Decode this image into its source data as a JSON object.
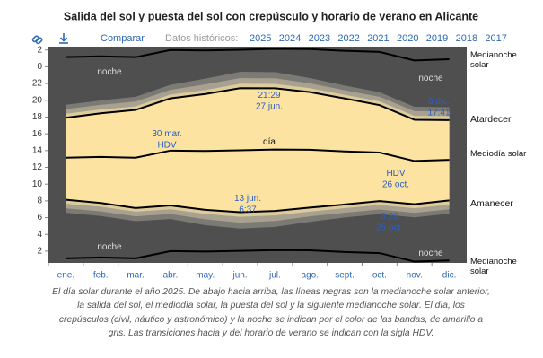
{
  "chart_data": {
    "type": "sunchart",
    "title": "Salida del sol y puesta del sol con crepúsculo y horario de verano en Alicante",
    "toolbar": {
      "compare": "Comparar",
      "history_label": "Datos históricos:",
      "years": [
        "2025",
        "2024",
        "2023",
        "2022",
        "2021",
        "2020",
        "2019",
        "2018",
        "2017"
      ]
    },
    "categories": [
      "ene.",
      "feb.",
      "mar.",
      "abr.",
      "may.",
      "jun.",
      "jul.",
      "ago.",
      "sept.",
      "oct.",
      "nov.",
      "dic."
    ],
    "ylim": [
      0.6,
      26.4
    ],
    "yticks": [
      2,
      4,
      6,
      8,
      10,
      12,
      14,
      16,
      18,
      20,
      22,
      {
        "value": 24,
        "label": "0"
      },
      {
        "value": 26,
        "label": "2"
      }
    ],
    "night_color": "#4f4f4f",
    "day_color": "#fce3a2",
    "twilight": [
      {
        "color": "#7c7a75",
        "dawn": [
          6.58,
          6.2,
          5.58,
          5.83,
          5.1,
          4.7,
          4.9,
          5.5,
          6.02,
          6.42,
          6.03,
          6.48
        ],
        "dusk": [
          19.47,
          19.98,
          20.42,
          21.85,
          22.58,
          23.4,
          23.36,
          22.65,
          21.76,
          20.97,
          19.23,
          19.18
        ]
      },
      {
        "color": "#a8a190",
        "dawn": [
          7.1,
          6.75,
          6.15,
          6.43,
          5.8,
          5.4,
          5.6,
          6.15,
          6.58,
          6.97,
          6.57,
          7.0
        ],
        "dusk": [
          18.95,
          19.45,
          19.85,
          21.25,
          21.9,
          22.65,
          22.63,
          22.03,
          21.2,
          20.42,
          18.7,
          18.65
        ]
      },
      {
        "color": "#dccb9c",
        "dawn": [
          7.65,
          7.3,
          6.72,
          7.0,
          6.45,
          6.1,
          6.27,
          6.72,
          7.13,
          7.52,
          7.12,
          7.55
        ],
        "dusk": [
          18.4,
          18.9,
          19.28,
          20.68,
          21.22,
          21.98,
          21.96,
          21.45,
          20.66,
          19.87,
          18.15,
          18.1
        ]
      }
    ],
    "series": [
      {
        "name": "Medianoche solar",
        "color": "#000000",
        "values": [
          25.15,
          25.25,
          25.15,
          26.0,
          25.95,
          26.03,
          26.13,
          26.1,
          25.9,
          25.77,
          24.76,
          24.9
        ]
      },
      {
        "name": "Atardecer",
        "color": "#000000",
        "values": [
          17.92,
          18.45,
          18.85,
          20.23,
          20.75,
          21.45,
          21.43,
          20.98,
          20.22,
          19.42,
          17.68,
          17.63
        ]
      },
      {
        "name": "Mediodía solar",
        "color": "#000000",
        "values": [
          13.15,
          13.25,
          13.15,
          14.0,
          13.95,
          14.03,
          14.13,
          14.1,
          13.9,
          13.77,
          12.76,
          12.9
        ]
      },
      {
        "name": "Amanecer",
        "color": "#000000",
        "values": [
          8.13,
          7.75,
          7.15,
          7.45,
          6.93,
          6.65,
          6.8,
          7.2,
          7.57,
          7.97,
          7.6,
          8.05
        ]
      },
      {
        "name": "Medianoche solar",
        "color": "#000000",
        "values": [
          1.15,
          1.25,
          1.15,
          2.0,
          1.95,
          2.03,
          2.13,
          2.1,
          1.9,
          1.77,
          0.76,
          0.9
        ]
      }
    ],
    "annotations": [
      {
        "lines": [
          "noche"
        ],
        "color": "#dddddd"
      },
      {
        "lines": [
          "noche"
        ],
        "color": "#dddddd"
      },
      {
        "lines": [
          "noche"
        ],
        "color": "#dddddd"
      },
      {
        "lines": [
          "noche"
        ],
        "color": "#dddddd"
      },
      {
        "lines": [
          "día"
        ],
        "color": "#111111"
      },
      {
        "lines": [
          "21:29",
          "27 jun."
        ],
        "color": "#2b5fc0"
      },
      {
        "lines": [
          "13 jun.",
          "6:37"
        ],
        "color": "#2b5fc0"
      },
      {
        "lines": [
          "6 dic.",
          "17:41"
        ],
        "color": "#2b5fc0"
      },
      {
        "lines": [
          "8:20",
          "25 oct."
        ],
        "color": "#2b5fc0"
      },
      {
        "lines": [
          "30 mar.",
          "HDV"
        ],
        "color": "#2b5fc0"
      },
      {
        "lines": [
          "HDV",
          "26 oct."
        ],
        "color": "#2b5fc0"
      }
    ],
    "caption": "El día solar durante el año 2025. De abajo hacia arriba, las líneas negras son la medianoche solar anterior, la salida del sol, el mediodía solar, la puesta del sol y la siguiente medianoche solar. El día, los crepúsculos (civil, náutico y astronómico) y la noche se indican por el color de las bandas, de amarillo a gris. Las transiciones hacia y del horario de verano se indican con la sigla HDV."
  }
}
